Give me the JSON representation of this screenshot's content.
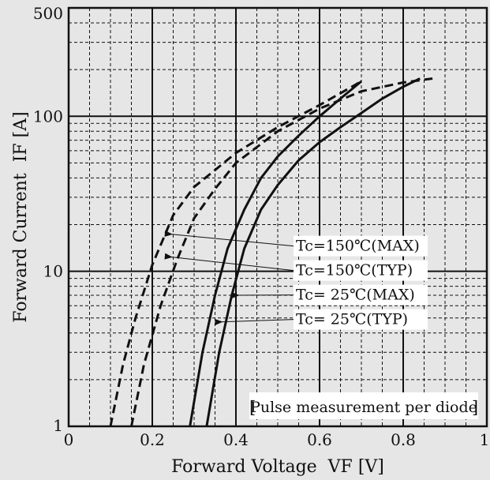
{
  "chart_data": {
    "type": "line",
    "title": "",
    "xlabel": "Forward Voltage  VF [V]",
    "ylabel": "Forward Current  IF [A]",
    "xlim": [
      0,
      1
    ],
    "ylim": [
      1,
      500
    ],
    "yscale": "log",
    "grid": true,
    "x_ticks": [
      {
        "value": 0,
        "label": "0"
      },
      {
        "value": 0.2,
        "label": "0.2"
      },
      {
        "value": 0.4,
        "label": "0.4"
      },
      {
        "value": 0.6,
        "label": "0.6"
      },
      {
        "value": 0.8,
        "label": "0.8"
      },
      {
        "value": 1,
        "label": "1"
      }
    ],
    "y_ticks": [
      {
        "value": 1,
        "label": "1"
      },
      {
        "value": 10,
        "label": "10"
      },
      {
        "value": 100,
        "label": "100"
      },
      {
        "value": 500,
        "label": "500"
      }
    ],
    "note": "Pulse measurement per diode",
    "series": [
      {
        "name": "Tc=150℃(MAX)",
        "style": "dashed",
        "label_at": {
          "x": 0.23,
          "y": 17.5
        },
        "points": [
          [
            0.15,
            1
          ],
          [
            0.18,
            2.5
          ],
          [
            0.22,
            6
          ],
          [
            0.26,
            12
          ],
          [
            0.3,
            22
          ],
          [
            0.35,
            34
          ],
          [
            0.4,
            50
          ],
          [
            0.5,
            80
          ],
          [
            0.6,
            112
          ],
          [
            0.7,
            145
          ],
          [
            0.8,
            165
          ],
          [
            0.87,
            175
          ]
        ]
      },
      {
        "name": "Tc=150℃(TYP)",
        "style": "dashed",
        "label_at": {
          "x": 0.23,
          "y": 12.5
        },
        "points": [
          [
            0.1,
            1
          ],
          [
            0.13,
            2.5
          ],
          [
            0.16,
            5
          ],
          [
            0.2,
            11
          ],
          [
            0.25,
            23
          ],
          [
            0.3,
            35
          ],
          [
            0.35,
            45
          ],
          [
            0.4,
            58
          ],
          [
            0.5,
            85
          ],
          [
            0.6,
            118
          ],
          [
            0.7,
            168
          ]
        ]
      },
      {
        "name": "Tc= 25℃(MAX)",
        "style": "solid",
        "label_at": {
          "x": 0.39,
          "y": 7.0
        },
        "points": [
          [
            0.33,
            1
          ],
          [
            0.36,
            3
          ],
          [
            0.39,
            7
          ],
          [
            0.42,
            14
          ],
          [
            0.46,
            25
          ],
          [
            0.5,
            36
          ],
          [
            0.55,
            52
          ],
          [
            0.6,
            68
          ],
          [
            0.65,
            85
          ],
          [
            0.7,
            105
          ],
          [
            0.75,
            130
          ],
          [
            0.8,
            155
          ],
          [
            0.84,
            175
          ]
        ]
      },
      {
        "name": "Tc= 25℃(TYP)",
        "style": "solid",
        "label_at": {
          "x": 0.35,
          "y": 4.7
        },
        "points": [
          [
            0.29,
            1
          ],
          [
            0.32,
            3
          ],
          [
            0.35,
            7
          ],
          [
            0.38,
            14
          ],
          [
            0.42,
            25
          ],
          [
            0.46,
            40
          ],
          [
            0.5,
            55
          ],
          [
            0.55,
            75
          ],
          [
            0.6,
            100
          ],
          [
            0.65,
            130
          ],
          [
            0.7,
            168
          ]
        ]
      }
    ]
  }
}
